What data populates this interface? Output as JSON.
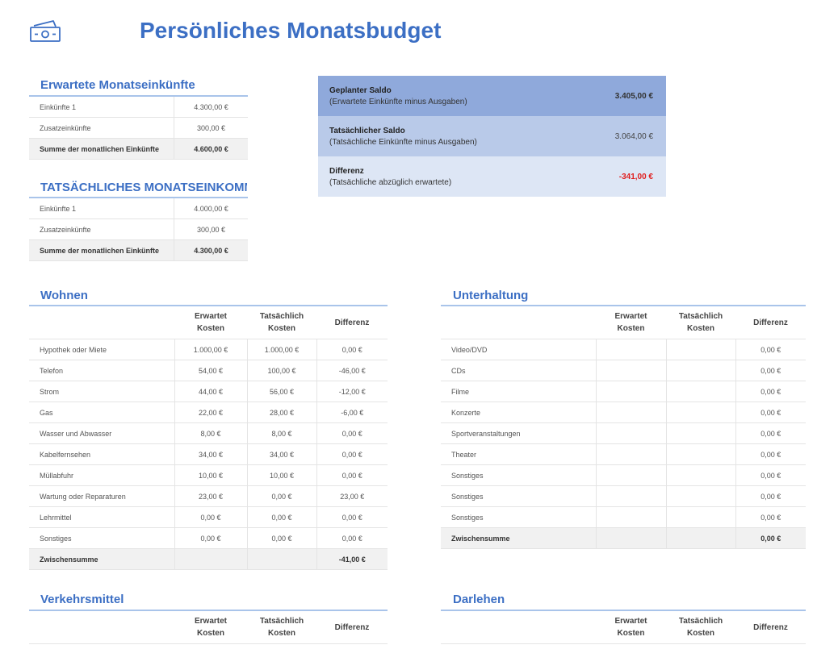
{
  "title": "Persönliches Monatsbudget",
  "expected_income": {
    "title": "Erwartete Monatseinkünfte",
    "rows": [
      {
        "label": "Einkünfte 1",
        "value": "4.300,00 €"
      },
      {
        "label": "Zusatzeinkünfte",
        "value": "300,00 €"
      }
    ],
    "sum_label": "Summe der monatlichen Einkünfte",
    "sum_value": "4.600,00 €"
  },
  "actual_income": {
    "title": "TATSÄCHLICHES MONATSEINKOMMEN",
    "rows": [
      {
        "label": "Einkünfte 1",
        "value": "4.000,00 €"
      },
      {
        "label": "Zusatzeinkünfte",
        "value": "300,00 €"
      }
    ],
    "sum_label": "Summe der monatlichen Einkünfte",
    "sum_value": "4.300,00 €"
  },
  "saldo": {
    "planned_title": "Geplanter Saldo",
    "planned_sub": "(Erwartete Einkünfte minus Ausgaben)",
    "planned_value": "3.405,00 €",
    "actual_title": "Tatsächlicher Saldo",
    "actual_sub": "(Tatsächliche Einkünfte minus Ausgaben)",
    "actual_value": "3.064,00 €",
    "diff_title": "Differenz",
    "diff_sub": "(Tatsächliche abzüglich erwartete)",
    "diff_value": "-341,00 €",
    "diff_color": "#e01f1f"
  },
  "headers": {
    "expected_1": "Erwartet",
    "expected_2": "Kosten",
    "actual_1": "Tatsächlich",
    "actual_2": "Kosten",
    "difference": "Differenz"
  },
  "wohnen": {
    "title": "Wohnen",
    "rows": [
      {
        "label": "Hypothek oder Miete",
        "expected": "1.000,00 €",
        "actual": "1.000,00 €",
        "diff": "0,00 €"
      },
      {
        "label": "Telefon",
        "expected": "54,00 €",
        "actual": "100,00 €",
        "diff": "-46,00 €"
      },
      {
        "label": "Strom",
        "expected": "44,00 €",
        "actual": "56,00 €",
        "diff": "-12,00 €"
      },
      {
        "label": "Gas",
        "expected": "22,00 €",
        "actual": "28,00 €",
        "diff": "-6,00 €"
      },
      {
        "label": "Wasser und Abwasser",
        "expected": "8,00 €",
        "actual": "8,00 €",
        "diff": "0,00 €"
      },
      {
        "label": "Kabelfernsehen",
        "expected": "34,00 €",
        "actual": "34,00 €",
        "diff": "0,00 €"
      },
      {
        "label": "Müllabfuhr",
        "expected": "10,00 €",
        "actual": "10,00 €",
        "diff": "0,00 €"
      },
      {
        "label": "Wartung oder Reparaturen",
        "expected": "23,00 €",
        "actual": "0,00 €",
        "diff": "23,00 €"
      },
      {
        "label": "Lehrmittel",
        "expected": "0,00 €",
        "actual": "0,00 €",
        "diff": "0,00 €"
      },
      {
        "label": "Sonstiges",
        "expected": "0,00 €",
        "actual": "0,00 €",
        "diff": "0,00 €"
      }
    ],
    "sum_label": "Zwischensumme",
    "sum_diff": "-41,00 €"
  },
  "unterhaltung": {
    "title": "Unterhaltung",
    "rows": [
      {
        "label": "Video/DVD",
        "expected": "",
        "actual": "",
        "diff": "0,00 €"
      },
      {
        "label": "CDs",
        "expected": "",
        "actual": "",
        "diff": "0,00 €"
      },
      {
        "label": "Filme",
        "expected": "",
        "actual": "",
        "diff": "0,00 €"
      },
      {
        "label": "Konzerte",
        "expected": "",
        "actual": "",
        "diff": "0,00 €"
      },
      {
        "label": "Sportveranstaltungen",
        "expected": "",
        "actual": "",
        "diff": "0,00 €"
      },
      {
        "label": "Theater",
        "expected": "",
        "actual": "",
        "diff": "0,00 €"
      },
      {
        "label": "Sonstiges",
        "expected": "",
        "actual": "",
        "diff": "0,00 €"
      },
      {
        "label": "Sonstiges",
        "expected": "",
        "actual": "",
        "diff": "0,00 €"
      },
      {
        "label": "Sonstiges",
        "expected": "",
        "actual": "",
        "diff": "0,00 €"
      }
    ],
    "sum_label": "Zwischensumme",
    "sum_diff": "0,00 €"
  },
  "verkehrsmittel": {
    "title": "Verkehrsmittel"
  },
  "darlehen": {
    "title": "Darlehen"
  },
  "logo_icon": "money-icon",
  "accent": "#3c6fc4"
}
